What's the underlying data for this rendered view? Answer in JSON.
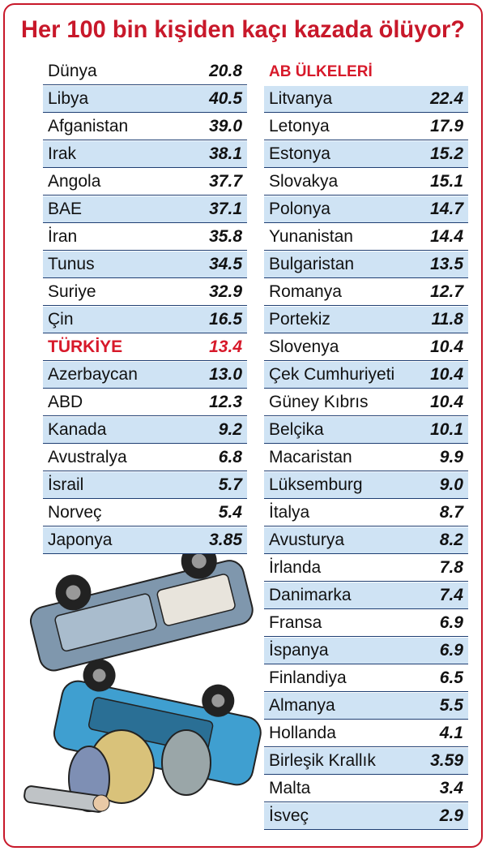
{
  "title": "Her 100 bin kişiden kaçı kazada ölüyor?",
  "left_table": {
    "highlight_row": 10,
    "highlight_color": "#d7192a",
    "rows": [
      [
        "Dünya",
        "20.8"
      ],
      [
        "Libya",
        "40.5"
      ],
      [
        "Afganistan",
        "39.0"
      ],
      [
        "Irak",
        "38.1"
      ],
      [
        "Angola",
        "37.7"
      ],
      [
        "BAE",
        "37.1"
      ],
      [
        "İran",
        "35.8"
      ],
      [
        "Tunus",
        "34.5"
      ],
      [
        "Suriye",
        "32.9"
      ],
      [
        "Çin",
        "16.5"
      ],
      [
        "TÜRKİYE",
        "13.4"
      ],
      [
        "Azerbaycan",
        "13.0"
      ],
      [
        "ABD",
        "12.3"
      ],
      [
        "Kanada",
        "9.2"
      ],
      [
        "Avustralya",
        "6.8"
      ],
      [
        "İsrail",
        "5.7"
      ],
      [
        "Norveç",
        "5.4"
      ],
      [
        "Japonya",
        "3.85"
      ]
    ]
  },
  "right_table": {
    "header": "AB ÜLKELERİ",
    "rows": [
      [
        "Litvanya",
        "22.4"
      ],
      [
        "Letonya",
        "17.9"
      ],
      [
        "Estonya",
        "15.2"
      ],
      [
        "Slovakya",
        "15.1"
      ],
      [
        "Polonya",
        "14.7"
      ],
      [
        "Yunanistan",
        "14.4"
      ],
      [
        "Bulgaristan",
        "13.5"
      ],
      [
        "Romanya",
        "12.7"
      ],
      [
        "Portekiz",
        "11.8"
      ],
      [
        "Slovenya",
        "10.4"
      ],
      [
        "Çek Cumhuriyeti",
        "10.4"
      ],
      [
        "Güney Kıbrıs",
        "10.4"
      ],
      [
        "Belçika",
        "10.1"
      ],
      [
        "Macaristan",
        "9.9"
      ],
      [
        "Lüksemburg",
        "9.0"
      ],
      [
        "İtalya",
        "8.7"
      ],
      [
        "Avusturya",
        "8.2"
      ],
      [
        "İrlanda",
        "7.8"
      ],
      [
        "Danimarka",
        "7.4"
      ],
      [
        "Fransa",
        "6.9"
      ],
      [
        "İspanya",
        "6.9"
      ],
      [
        "Finlandiya",
        "6.5"
      ],
      [
        "Almanya",
        "5.5"
      ],
      [
        "Hollanda",
        "4.1"
      ],
      [
        "Birleşik Krallık",
        "3.59"
      ],
      [
        "Malta",
        "3.4"
      ],
      [
        "İsveç",
        "2.9"
      ]
    ]
  }
}
